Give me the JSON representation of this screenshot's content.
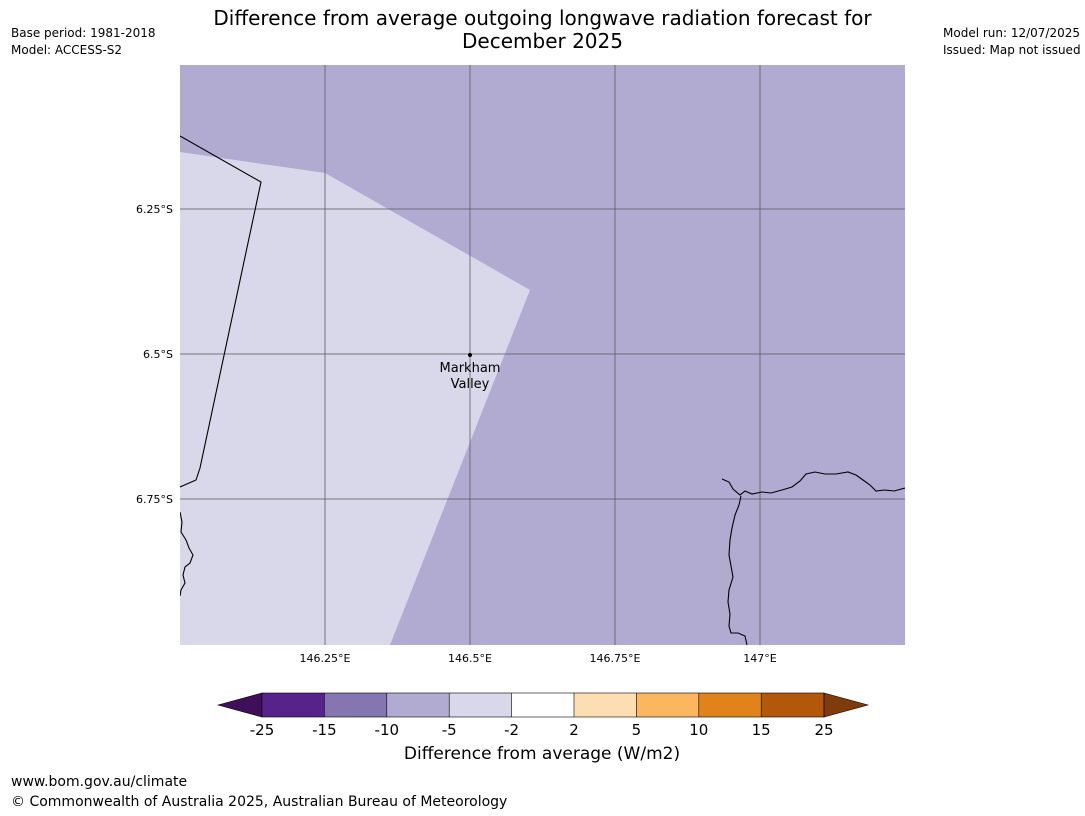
{
  "header": {
    "title_line1": "Difference from average outgoing longwave radiation forecast for",
    "title_line2": "December 2025",
    "base_period": "Base period: 1981-2018",
    "model": "Model: ACCESS-S2",
    "model_run": "Model run: 12/07/2025",
    "issued": "Issued: Map not issued"
  },
  "map": {
    "place_label_line1": "Markham",
    "place_label_line2": "Valley",
    "lat_labels": [
      "6.25°S",
      "6.5°S",
      "6.75°S"
    ],
    "lon_labels": [
      "146.25°E",
      "146.5°E",
      "146.75°E",
      "147°E"
    ],
    "region_colors": {
      "band_-5_-2": "#d8d8ea",
      "band_-10_-5": "#b1abd2"
    }
  },
  "colorbar": {
    "label": "Difference from average (W/m2)",
    "ticks": [
      "-25",
      "-15",
      "-10",
      "-5",
      "-2",
      "2",
      "5",
      "10",
      "15",
      "25"
    ],
    "colors": [
      "#3f0f5c",
      "#572289",
      "#8575b0",
      "#b1abd2",
      "#d8d8ea",
      "#ffffff",
      "#fddeb2",
      "#fbb65f",
      "#e0831a",
      "#b3580a",
      "#7f3c0a"
    ]
  },
  "footer": {
    "url": "www.bom.gov.au/climate",
    "copyright": "© Commonwealth of Australia 2025, Australian Bureau of Meteorology"
  }
}
